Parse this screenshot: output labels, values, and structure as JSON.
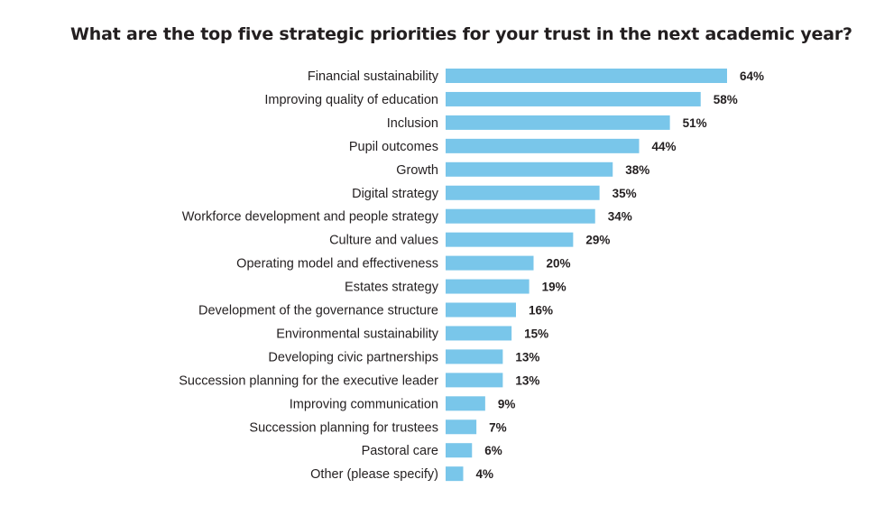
{
  "chart_data": {
    "type": "bar",
    "orientation": "horizontal",
    "title": "What are the top five strategic priorities for your trust in the next academic year?",
    "categories": [
      "Financial sustainability",
      "Improving quality of education",
      "Inclusion",
      "Pupil outcomes",
      "Growth",
      "Digital strategy",
      "Workforce development and people strategy",
      "Culture and values",
      "Operating model and effectiveness",
      "Estates strategy",
      "Development of the governance structure",
      "Environmental sustainability",
      "Developing civic partnerships",
      "Succession planning for the executive leader",
      "Improving communication",
      "Succession planning for trustees",
      "Pastoral care",
      "Other (please specify)"
    ],
    "values": [
      64,
      58,
      51,
      44,
      38,
      35,
      34,
      29,
      20,
      19,
      16,
      15,
      13,
      13,
      9,
      7,
      6,
      4
    ],
    "value_labels": [
      "64%",
      "58%",
      "51%",
      "44%",
      "38%",
      "35%",
      "34%",
      "29%",
      "20%",
      "19%",
      "16%",
      "15%",
      "13%",
      "13%",
      "9%",
      "7%",
      "6%",
      "4%"
    ],
    "xlim": [
      0,
      100
    ],
    "xlabel": "",
    "ylabel": "",
    "grid": false,
    "legend": "none",
    "bar_color": "#79c6ea"
  }
}
